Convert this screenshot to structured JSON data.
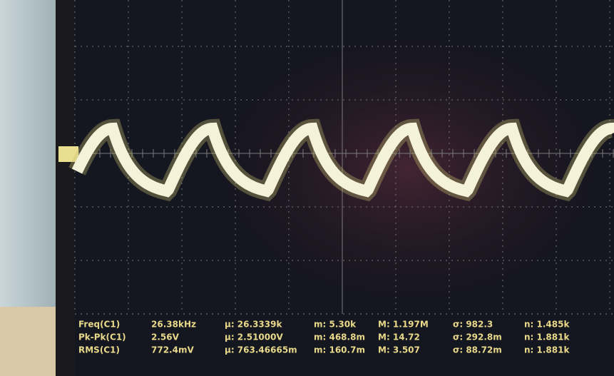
{
  "measurements": {
    "rows": [
      [
        "Freq(C1)",
        "26.38kHz",
        "μ: 26.3339k",
        "m: 5.30k",
        "M: 1.197M",
        "σ: 982.3",
        "n: 1.485k"
      ],
      [
        "Pk-Pk(C1)",
        "2.56V",
        "μ: 2.51000V",
        "m: 468.8m",
        "M: 14.72",
        "σ: 292.8m",
        "n: 1.881k"
      ],
      [
        "RMS(C1)",
        "772.4mV",
        "μ: 763.46665m",
        "m: 160.7m",
        "M: 3.507",
        "σ: 88.72m",
        "n: 1.881k"
      ]
    ]
  }
}
